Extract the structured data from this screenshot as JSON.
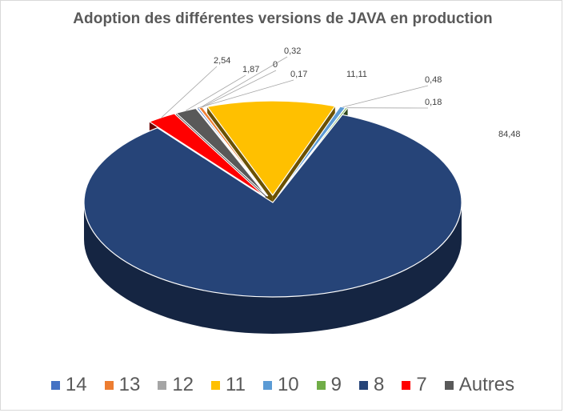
{
  "chart_data": {
    "type": "pie",
    "title": "Adoption des différentes versions de JAVA en production",
    "legend_position": "bottom",
    "categories": [
      "14",
      "13",
      "12",
      "11",
      "10",
      "9",
      "8",
      "7",
      "Autres"
    ],
    "values": [
      0.17,
      0.32,
      0,
      11.11,
      0.48,
      0.18,
      84.48,
      2.54,
      1.87
    ],
    "data_labels": [
      "0,17",
      "0,32",
      "0",
      "11,11",
      "0,48",
      "0,18",
      "84,48",
      "2,54",
      "1,87"
    ],
    "colors": [
      "#4472C4",
      "#ED7D31",
      "#A5A5A5",
      "#FFC000",
      "#5B9BD5",
      "#70AD47",
      "#264478",
      "#FF0000",
      "#595959"
    ],
    "exploded": true,
    "three_d": true
  }
}
